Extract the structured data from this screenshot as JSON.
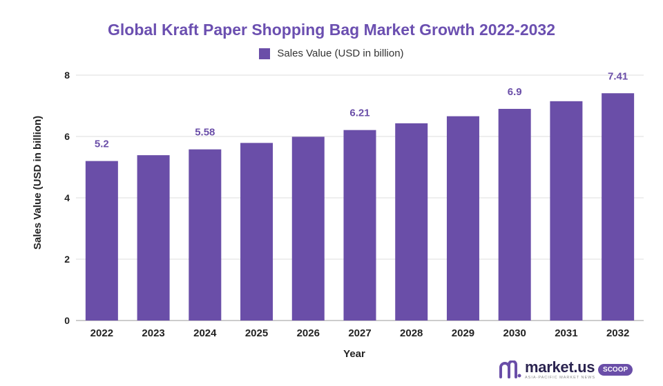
{
  "chart_data": {
    "type": "bar",
    "title": "Global Kraft Paper Shopping Bag Market Growth 2022-2032",
    "xlabel": "Year",
    "ylabel": "Sales Value (USD in billion)",
    "categories": [
      "2022",
      "2023",
      "2024",
      "2025",
      "2026",
      "2027",
      "2028",
      "2029",
      "2030",
      "2031",
      "2032"
    ],
    "series": [
      {
        "name": "Sales Value (USD in billion)",
        "values": [
          5.2,
          5.39,
          5.58,
          5.79,
          5.99,
          6.21,
          6.43,
          6.66,
          6.9,
          7.15,
          7.41
        ],
        "labels": [
          "5.2",
          "",
          "5.58",
          "",
          "",
          "6.21",
          "",
          "",
          "6.9",
          "",
          "7.41"
        ]
      }
    ],
    "ylim": [
      0,
      8
    ],
    "yticks": [
      "0",
      "2",
      "4",
      "6",
      "8"
    ],
    "grid": true,
    "legend": "top-center",
    "colors": {
      "bar": "#6a4ea8",
      "label": "#6a4ea8",
      "title": "#6b4fb0",
      "grid": "#dddddd"
    }
  },
  "branding": {
    "logo_text": "market.us",
    "logo_tagline": "ASIA-PACIFIC MARKET NEWS",
    "logo_badge": "SCOOP"
  }
}
